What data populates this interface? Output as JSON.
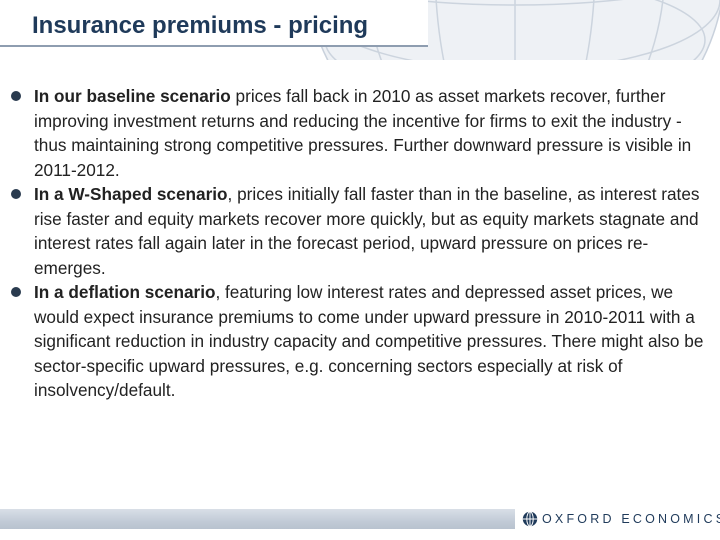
{
  "slide": {
    "title": "Insurance premiums - pricing"
  },
  "bullets": [
    {
      "lead": "In our baseline scenario",
      "text": " prices fall back in 2010 as asset markets recover, further improving investment returns and reducing the incentive for firms to exit the industry - thus maintaining strong competitive pressures. Further downward pressure is visible in 2011-2012."
    },
    {
      "lead": "In a W-Shaped scenario",
      "text": ", prices initially fall faster than in the baseline, as interest rates rise faster and equity markets recover more quickly, but as equity markets stagnate and interest rates fall again later in the forecast period, upward pressure on prices re-emerges."
    },
    {
      "lead": "In a deflation scenario",
      "text": ", featuring low interest rates and depressed asset prices, we would expect insurance premiums to come under upward pressure in 2010-2011 with a significant reduction in industry capacity and competitive pressures. There might also be sector-specific upward pressures, e.g. concerning sectors especially at risk of insolvency/default."
    }
  ],
  "footer": {
    "logo_text": "OXFORD ECONOMICS",
    "logo_icon": "globe-icon"
  },
  "colors": {
    "title": "#1f3a5a",
    "bullet": "#2a3b4f",
    "body_text": "#222222",
    "footer_bar": "#c2cbd7"
  }
}
